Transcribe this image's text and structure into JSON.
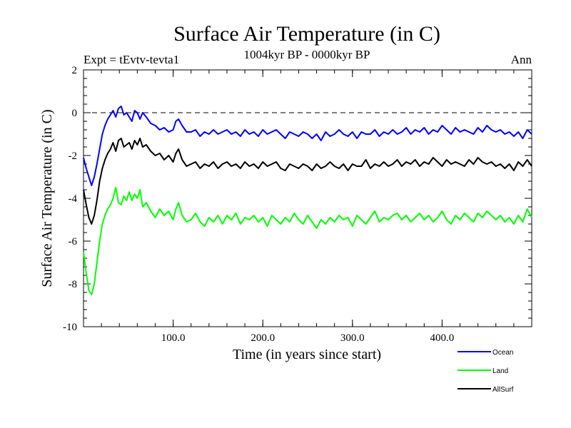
{
  "chart_data": {
    "type": "line",
    "title": "Surface Air Temperature (in C)",
    "subtitle": "1004kyr BP - 0000kyr BP",
    "left_note": "Expt = tEvtv-tevta1",
    "right_note": "Ann",
    "xlabel": "Time (in years since start)",
    "ylabel": "Surface Air Temperature (in C)",
    "xlim": [
      0,
      500
    ],
    "ylim": [
      -10,
      2
    ],
    "x_ticks": [
      {
        "value": 100,
        "label": "100.0"
      },
      {
        "value": 200,
        "label": "200.0"
      },
      {
        "value": 300,
        "label": "300.0"
      },
      {
        "value": 400,
        "label": "400.0"
      }
    ],
    "y_ticks": [
      {
        "value": 2,
        "label": "2"
      },
      {
        "value": 0,
        "label": "0"
      },
      {
        "value": -2,
        "label": "-2"
      },
      {
        "value": -4,
        "label": "-4"
      },
      {
        "value": -6,
        "label": "-6"
      },
      {
        "value": -8,
        "label": "-8"
      },
      {
        "value": -10,
        "label": "-10"
      }
    ],
    "reference_line": 0,
    "legend_position": "bottom-right",
    "series": [
      {
        "name": "Ocean",
        "color": "#0000ff",
        "x": [
          0,
          3,
          6,
          9,
          12,
          15,
          18,
          21,
          24,
          27,
          30,
          33,
          36,
          39,
          42,
          45,
          48,
          51,
          54,
          57,
          60,
          63,
          66,
          70,
          75,
          80,
          85,
          90,
          95,
          100,
          103,
          106,
          110,
          115,
          120,
          125,
          130,
          135,
          140,
          145,
          150,
          155,
          160,
          165,
          170,
          175,
          180,
          185,
          190,
          195,
          200,
          205,
          210,
          215,
          220,
          225,
          230,
          235,
          240,
          245,
          250,
          255,
          260,
          265,
          270,
          275,
          280,
          285,
          290,
          295,
          300,
          305,
          310,
          315,
          320,
          325,
          330,
          335,
          340,
          345,
          350,
          355,
          360,
          365,
          370,
          375,
          380,
          385,
          390,
          395,
          400,
          405,
          410,
          415,
          420,
          425,
          430,
          435,
          440,
          445,
          450,
          455,
          460,
          465,
          470,
          475,
          480,
          485,
          490,
          495,
          500
        ],
        "values": [
          -2.1,
          -2.6,
          -3.0,
          -3.4,
          -3.0,
          -2.4,
          -1.7,
          -1.0,
          -0.6,
          -0.3,
          -0.1,
          0.1,
          -0.2,
          0.2,
          0.3,
          -0.1,
          0.0,
          -0.2,
          -0.4,
          0.1,
          0.0,
          -0.3,
          0.0,
          -0.2,
          -0.5,
          -0.6,
          -0.8,
          -0.7,
          -0.9,
          -0.8,
          -0.4,
          -0.3,
          -0.6,
          -0.9,
          -0.9,
          -0.8,
          -1.1,
          -0.9,
          -1.0,
          -0.8,
          -1.0,
          -0.9,
          -0.8,
          -1.0,
          -0.9,
          -1.1,
          -0.8,
          -1.0,
          -0.9,
          -1.1,
          -0.8,
          -1.0,
          -0.9,
          -0.8,
          -1.0,
          -1.2,
          -0.9,
          -1.0,
          -1.1,
          -0.9,
          -1.0,
          -1.2,
          -1.0,
          -1.3,
          -0.9,
          -1.1,
          -1.0,
          -0.8,
          -1.0,
          -1.1,
          -0.9,
          -1.2,
          -0.9,
          -1.0,
          -1.0,
          -0.8,
          -1.1,
          -0.9,
          -1.0,
          -0.8,
          -1.0,
          -0.9,
          -0.7,
          -1.0,
          -0.8,
          -0.9,
          -0.7,
          -1.0,
          -0.8,
          -0.9,
          -0.6,
          -0.8,
          -1.0,
          -0.7,
          -0.9,
          -0.8,
          -0.9,
          -1.0,
          -0.7,
          -0.9,
          -0.6,
          -0.8,
          -0.9,
          -0.8,
          -1.0,
          -0.9,
          -1.1,
          -0.9,
          -1.2,
          -0.8,
          -1.0
        ]
      },
      {
        "name": "Land",
        "color": "#00ff00",
        "x": [
          0,
          3,
          6,
          9,
          12,
          15,
          18,
          21,
          24,
          27,
          30,
          33,
          36,
          39,
          42,
          45,
          48,
          51,
          54,
          57,
          60,
          63,
          66,
          70,
          75,
          80,
          85,
          90,
          95,
          100,
          103,
          106,
          110,
          115,
          120,
          125,
          130,
          135,
          140,
          145,
          150,
          155,
          160,
          165,
          170,
          175,
          180,
          185,
          190,
          195,
          200,
          205,
          210,
          215,
          220,
          225,
          230,
          235,
          240,
          245,
          250,
          255,
          260,
          265,
          270,
          275,
          280,
          285,
          290,
          295,
          300,
          305,
          310,
          315,
          320,
          325,
          330,
          335,
          340,
          345,
          350,
          355,
          360,
          365,
          370,
          375,
          380,
          385,
          390,
          395,
          400,
          405,
          410,
          415,
          420,
          425,
          430,
          435,
          440,
          445,
          450,
          455,
          460,
          465,
          470,
          475,
          480,
          485,
          490,
          495,
          500
        ],
        "values": [
          -6.5,
          -7.5,
          -8.3,
          -8.5,
          -8.0,
          -7.0,
          -6.0,
          -5.2,
          -4.8,
          -4.5,
          -4.3,
          -4.0,
          -3.5,
          -4.2,
          -4.3,
          -3.9,
          -4.1,
          -3.7,
          -4.1,
          -3.8,
          -4.0,
          -3.6,
          -4.4,
          -4.2,
          -4.6,
          -4.9,
          -4.5,
          -4.8,
          -4.6,
          -5.0,
          -4.5,
          -4.2,
          -4.8,
          -5.1,
          -5.0,
          -4.7,
          -5.1,
          -5.3,
          -4.9,
          -5.1,
          -4.8,
          -5.2,
          -4.8,
          -5.0,
          -4.7,
          -5.2,
          -4.9,
          -5.0,
          -4.8,
          -5.1,
          -4.9,
          -5.3,
          -4.8,
          -5.0,
          -5.2,
          -4.9,
          -5.1,
          -4.7,
          -5.0,
          -5.2,
          -4.8,
          -5.1,
          -5.4,
          -5.0,
          -5.2,
          -4.9,
          -5.1,
          -4.8,
          -5.0,
          -4.9,
          -5.3,
          -4.8,
          -5.0,
          -5.2,
          -4.9,
          -4.6,
          -5.1,
          -4.9,
          -5.0,
          -4.8,
          -4.7,
          -5.0,
          -4.8,
          -5.1,
          -4.9,
          -4.7,
          -5.0,
          -4.8,
          -5.1,
          -4.9,
          -4.6,
          -5.0,
          -5.2,
          -4.8,
          -5.0,
          -4.7,
          -4.9,
          -5.1,
          -4.7,
          -4.9,
          -4.6,
          -4.8,
          -5.0,
          -4.8,
          -5.1,
          -4.9,
          -5.2,
          -4.8,
          -5.1,
          -4.5,
          -4.9
        ]
      },
      {
        "name": "AllSurf",
        "color": "#000000",
        "x": [
          0,
          3,
          6,
          9,
          12,
          15,
          18,
          21,
          24,
          27,
          30,
          33,
          36,
          39,
          42,
          45,
          48,
          51,
          54,
          57,
          60,
          63,
          66,
          70,
          75,
          80,
          85,
          90,
          95,
          100,
          103,
          106,
          110,
          115,
          120,
          125,
          130,
          135,
          140,
          145,
          150,
          155,
          160,
          165,
          170,
          175,
          180,
          185,
          190,
          195,
          200,
          205,
          210,
          215,
          220,
          225,
          230,
          235,
          240,
          245,
          250,
          255,
          260,
          265,
          270,
          275,
          280,
          285,
          290,
          295,
          300,
          305,
          310,
          315,
          320,
          325,
          330,
          335,
          340,
          345,
          350,
          355,
          360,
          365,
          370,
          375,
          380,
          385,
          390,
          395,
          400,
          405,
          410,
          415,
          420,
          425,
          430,
          435,
          440,
          445,
          450,
          455,
          460,
          465,
          470,
          475,
          480,
          485,
          490,
          495,
          500
        ],
        "values": [
          -3.6,
          -4.3,
          -4.9,
          -5.2,
          -4.8,
          -4.1,
          -3.2,
          -2.6,
          -2.2,
          -1.9,
          -1.7,
          -1.4,
          -1.8,
          -1.3,
          -1.2,
          -1.6,
          -1.5,
          -1.4,
          -1.7,
          -1.3,
          -1.5,
          -1.2,
          -1.6,
          -1.5,
          -1.8,
          -2.0,
          -1.9,
          -2.2,
          -2.0,
          -2.3,
          -1.9,
          -1.7,
          -2.2,
          -2.5,
          -2.4,
          -2.3,
          -2.6,
          -2.4,
          -2.5,
          -2.3,
          -2.6,
          -2.4,
          -2.3,
          -2.5,
          -2.4,
          -2.6,
          -2.3,
          -2.5,
          -2.4,
          -2.6,
          -2.3,
          -2.5,
          -2.4,
          -2.3,
          -2.6,
          -2.7,
          -2.4,
          -2.5,
          -2.6,
          -2.4,
          -2.5,
          -2.7,
          -2.4,
          -2.6,
          -2.5,
          -2.3,
          -2.5,
          -2.6,
          -2.4,
          -2.7,
          -2.4,
          -2.5,
          -2.5,
          -2.2,
          -2.6,
          -2.4,
          -2.5,
          -2.3,
          -2.5,
          -2.4,
          -2.2,
          -2.5,
          -2.3,
          -2.4,
          -2.2,
          -2.5,
          -2.3,
          -2.4,
          -2.1,
          -2.3,
          -2.5,
          -2.2,
          -2.4,
          -2.3,
          -2.4,
          -2.5,
          -2.2,
          -2.4,
          -2.1,
          -2.3,
          -2.4,
          -2.3,
          -2.5,
          -2.4,
          -2.6,
          -2.4,
          -2.7,
          -2.3,
          -2.5,
          -2.2,
          -2.5
        ]
      }
    ]
  }
}
